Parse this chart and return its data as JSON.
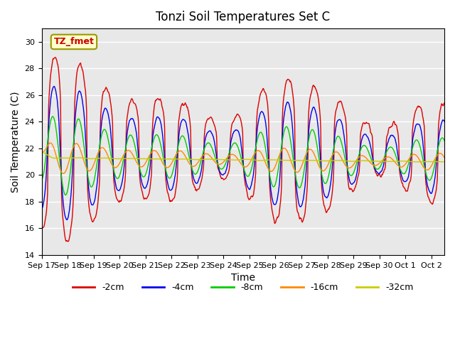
{
  "title": "Tonzi Soil Temperatures Set C",
  "xlabel": "Time",
  "ylabel": "Soil Temperature (C)",
  "ylim": [
    14,
    31
  ],
  "xlim": [
    0,
    15.5
  ],
  "plot_bg_color": "#e8e8e8",
  "fig_bg_color": "#ffffff",
  "grid_color": "white",
  "tick_labels": [
    "Sep 17",
    "Sep 18",
    "Sep 19",
    "Sep 20",
    "Sep 21",
    "Sep 22",
    "Sep 23",
    "Sep 24",
    "Sep 25",
    "Sep 26",
    "Sep 27",
    "Sep 28",
    "Sep 29",
    "Sep 30",
    "Oct 1",
    "Oct 2"
  ],
  "annotation_text": "TZ_fmet",
  "series_colors": [
    "#dd0000",
    "#0000ee",
    "#00cc00",
    "#ff8800",
    "#cccc00"
  ],
  "series_labels": [
    "-2cm",
    "-4cm",
    "-8cm",
    "-16cm",
    "-32cm"
  ],
  "seed": 42
}
